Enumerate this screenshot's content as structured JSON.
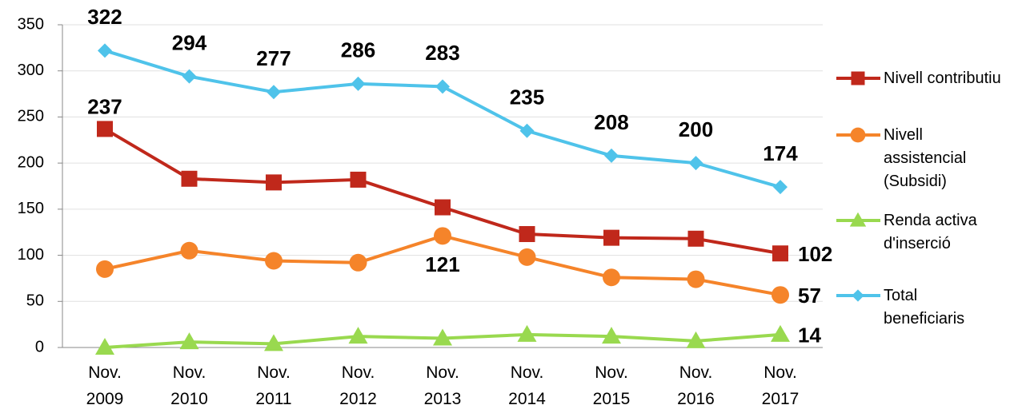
{
  "chart_data": {
    "type": "line",
    "categories": [
      "Nov. 2009",
      "Nov. 2010",
      "Nov. 2011",
      "Nov. 2012",
      "Nov. 2013",
      "Nov. 2014",
      "Nov. 2015",
      "Nov. 2016",
      "Nov. 2017"
    ],
    "series": [
      {
        "name": "Nivell contributiu",
        "color": "#c0281b",
        "marker": "square",
        "values": [
          237,
          183,
          179,
          182,
          152,
          123,
          119,
          118,
          102
        ],
        "data_labels": [
          0,
          8
        ]
      },
      {
        "name": "Nivell assistencial (Subsidi)",
        "color": "#f5842a",
        "marker": "circle",
        "values": [
          85,
          105,
          94,
          92,
          121,
          98,
          76,
          74,
          57
        ],
        "data_labels": [
          4,
          8
        ]
      },
      {
        "name": "Renda activa d'inserció",
        "color": "#99d94f",
        "marker": "triangle",
        "values": [
          0,
          6,
          4,
          12,
          10,
          14,
          12,
          7,
          14
        ],
        "data_labels": [
          8
        ]
      },
      {
        "name": "Total beneficiaris",
        "color": "#4fc3ea",
        "marker": "diamond",
        "values": [
          322,
          294,
          277,
          286,
          283,
          235,
          208,
          200,
          174
        ],
        "data_labels": [
          0,
          1,
          2,
          3,
          4,
          5,
          6,
          7,
          8
        ]
      }
    ],
    "ylim": [
      0,
      350
    ],
    "yticks": [
      0,
      50,
      100,
      150,
      200,
      250,
      300,
      350
    ],
    "grid": true,
    "legend": "right"
  }
}
